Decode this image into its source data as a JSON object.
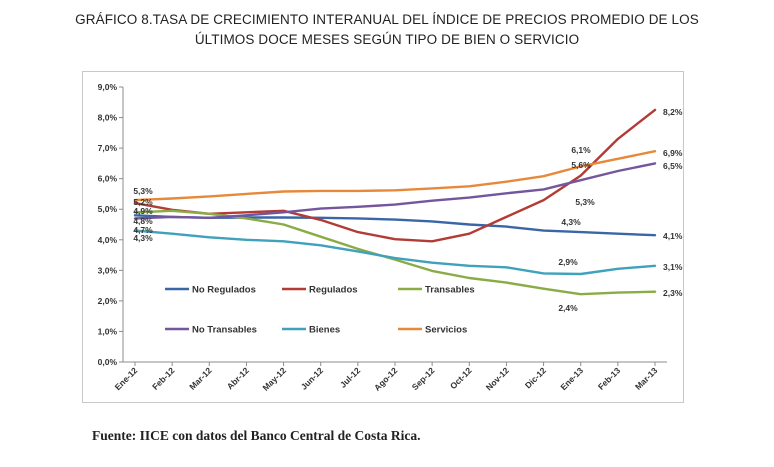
{
  "title_line1": "GRÁFICO 8.TASA DE CRECIMIENTO INTERANUAL DEL ÍNDICE DE PRECIOS PROMEDIO DE LOS",
  "title_line2": "ÚLTIMOS DOCE MESES SEGÚN TIPO DE BIEN O SERVICIO",
  "source": "Fuente: IICE con datos del Banco Central de Costa Rica.",
  "chart_data": {
    "type": "line",
    "categories": [
      "Ene-12",
      "Feb-12",
      "Mar-12",
      "Abr-12",
      "May-12",
      "Jun-12",
      "Jul-12",
      "Ago-12",
      "Sep-12",
      "Oct-12",
      "Nov-12",
      "Dic-12",
      "Ene-13",
      "Feb-13",
      "Mar-13"
    ],
    "ylim": [
      0,
      9
    ],
    "yticks": [
      "0,0%",
      "1,0%",
      "2,0%",
      "3,0%",
      "4,0%",
      "5,0%",
      "6,0%",
      "7,0%",
      "8,0%",
      "9,0%"
    ],
    "grid": false,
    "legend_position": "inside-bottom",
    "series": [
      {
        "name": "No Regulados",
        "color": "#3a66a7",
        "values": [
          4.8,
          4.75,
          4.72,
          4.73,
          4.73,
          4.72,
          4.7,
          4.66,
          4.6,
          4.5,
          4.43,
          4.3,
          4.25,
          4.2,
          4.15
        ]
      },
      {
        "name": "Regulados",
        "color": "#b33b36",
        "values": [
          5.2,
          4.98,
          4.85,
          4.9,
          4.95,
          4.65,
          4.25,
          4.02,
          3.95,
          4.2,
          4.75,
          5.3,
          6.1,
          7.3,
          8.25
        ]
      },
      {
        "name": "Transables",
        "color": "#8aab45",
        "values": [
          4.9,
          4.95,
          4.85,
          4.7,
          4.5,
          4.1,
          3.7,
          3.35,
          2.98,
          2.75,
          2.6,
          2.4,
          2.22,
          2.27,
          2.3
        ]
      },
      {
        "name": "No Transables",
        "color": "#74569c",
        "values": [
          4.7,
          4.75,
          4.72,
          4.8,
          4.9,
          5.02,
          5.08,
          5.15,
          5.28,
          5.38,
          5.52,
          5.65,
          5.95,
          6.25,
          6.5
        ]
      },
      {
        "name": "Bienes",
        "color": "#3fa1bb",
        "values": [
          4.3,
          4.2,
          4.08,
          4.0,
          3.95,
          3.82,
          3.62,
          3.4,
          3.25,
          3.15,
          3.1,
          2.9,
          2.88,
          3.05,
          3.15
        ]
      },
      {
        "name": "Servicios",
        "color": "#e6893a",
        "values": [
          5.3,
          5.35,
          5.42,
          5.5,
          5.58,
          5.6,
          5.6,
          5.62,
          5.68,
          5.75,
          5.9,
          6.08,
          6.4,
          6.65,
          6.9
        ]
      }
    ],
    "annotations": [
      "5,3%",
      "5,2%",
      "4,9%",
      "4,8%",
      "4,7%",
      "4,3%",
      "5,6%",
      "6,1%",
      "5,3%",
      "4,3%",
      "2,9%",
      "2,4%",
      "8,2%",
      "6,9%",
      "6,5%",
      "4,1%",
      "3,1%",
      "2,3%"
    ]
  }
}
